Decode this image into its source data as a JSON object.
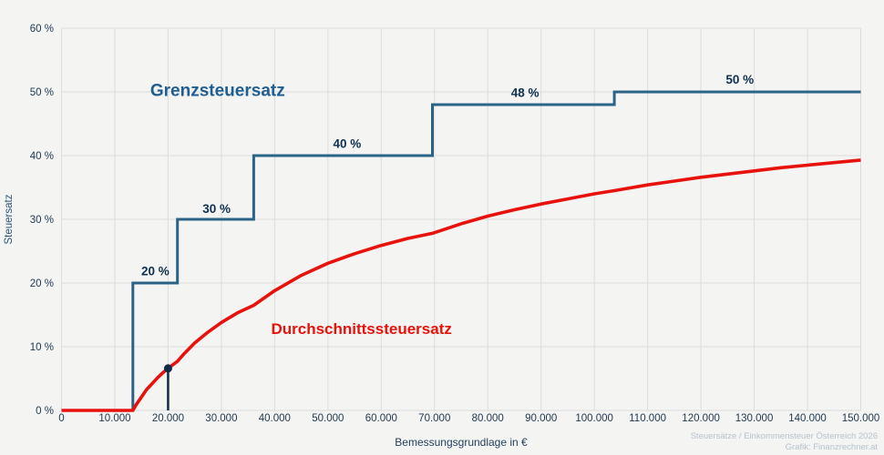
{
  "footer": {
    "credit_line1": "Steuersätze / Einkommensteuer Österreich 2026",
    "credit_line2": "Grafik: Finanzrechner.at"
  },
  "colors": {
    "background": "#f4f4f3",
    "grid": "#dcdcdc",
    "marginal_line": "#2b6386",
    "average_line": "#e8120c",
    "step_label": "#0d3150",
    "tick_text": "#1e3850",
    "marker": "#0d2c48",
    "credit_text": "#b5c2cc"
  },
  "chart_data": {
    "type": "line",
    "title": "",
    "xlabel": "Bemessungsgrundlage in €",
    "ylabel": "Steuersatz",
    "xlim": [
      0,
      150000
    ],
    "ylim": [
      0,
      60
    ],
    "grid": true,
    "legend_position": "inline-labels",
    "x_ticks": [
      0,
      10000,
      20000,
      30000,
      40000,
      50000,
      60000,
      70000,
      80000,
      90000,
      100000,
      110000,
      120000,
      130000,
      140000,
      150000
    ],
    "x_tick_labels": [
      "0",
      "10.000",
      "20.000",
      "30.000",
      "40.000",
      "50.000",
      "60.000",
      "70.000",
      "80.000",
      "90.000",
      "100.000",
      "110.000",
      "120.000",
      "130.000",
      "140.000",
      "150.000"
    ],
    "y_ticks": [
      0,
      10,
      20,
      30,
      40,
      50,
      60
    ],
    "y_tick_labels": [
      "0 %",
      "10 %",
      "20 %",
      "30 %",
      "40 %",
      "50 %",
      "60 %"
    ],
    "tax_brackets": [
      {
        "from": 0,
        "to": 13396,
        "rate": 0
      },
      {
        "from": 13396,
        "to": 21759,
        "rate": 20
      },
      {
        "from": 21759,
        "to": 36072,
        "rate": 30
      },
      {
        "from": 36072,
        "to": 69618,
        "rate": 40
      },
      {
        "from": 69618,
        "to": 103752,
        "rate": 48
      },
      {
        "from": 103752,
        "to": 150000,
        "rate": 50
      }
    ],
    "series": [
      {
        "name": "Grenzsteuersatz",
        "kind": "step",
        "color": "#2b6386",
        "width": 3,
        "points": [
          [
            0,
            0
          ],
          [
            13396,
            0
          ],
          [
            13396,
            20
          ],
          [
            21759,
            20
          ],
          [
            21759,
            30
          ],
          [
            36072,
            30
          ],
          [
            36072,
            40
          ],
          [
            69618,
            40
          ],
          [
            69618,
            48
          ],
          [
            103752,
            48
          ],
          [
            103752,
            50
          ],
          [
            150000,
            50
          ]
        ]
      },
      {
        "name": "Durchschnittssteuersatz",
        "kind": "line",
        "color": "#e8120c",
        "width": 3.6,
        "points": [
          [
            0,
            0
          ],
          [
            5000,
            0
          ],
          [
            10000,
            0
          ],
          [
            13396,
            0
          ],
          [
            14000,
            0.9
          ],
          [
            15000,
            2.1
          ],
          [
            16000,
            3.3
          ],
          [
            17000,
            4.2
          ],
          [
            18000,
            5.1
          ],
          [
            19000,
            5.9
          ],
          [
            20000,
            6.6
          ],
          [
            21759,
            7.7
          ],
          [
            23000,
            8.9
          ],
          [
            25000,
            10.6
          ],
          [
            27500,
            12.3
          ],
          [
            30000,
            13.8
          ],
          [
            33000,
            15.3
          ],
          [
            36072,
            16.5
          ],
          [
            40000,
            18.8
          ],
          [
            45000,
            21.2
          ],
          [
            50000,
            23.1
          ],
          [
            55000,
            24.6
          ],
          [
            60000,
            25.9
          ],
          [
            65000,
            27.0
          ],
          [
            69618,
            27.8
          ],
          [
            75000,
            29.3
          ],
          [
            80000,
            30.5
          ],
          [
            85000,
            31.5
          ],
          [
            90000,
            32.4
          ],
          [
            95000,
            33.2
          ],
          [
            100000,
            34.0
          ],
          [
            103752,
            34.5
          ],
          [
            110000,
            35.4
          ],
          [
            115000,
            36.0
          ],
          [
            120000,
            36.6
          ],
          [
            125000,
            37.1
          ],
          [
            130000,
            37.6
          ],
          [
            135000,
            38.1
          ],
          [
            140000,
            38.5
          ],
          [
            145000,
            38.9
          ],
          [
            150000,
            39.3
          ]
        ]
      }
    ],
    "step_labels": [
      {
        "text": "20 %",
        "x": 17600,
        "y": 21.9
      },
      {
        "text": "30 %",
        "x": 29100,
        "y": 31.7
      },
      {
        "text": "40 %",
        "x": 53600,
        "y": 41.9
      },
      {
        "text": "48 %",
        "x": 87000,
        "y": 49.9
      },
      {
        "text": "50 %",
        "x": 127300,
        "y": 52.0
      }
    ],
    "annotations": [
      {
        "text": "Grenzsteuersatz",
        "x": 29300,
        "y": 50.3,
        "color": "#1f5e92",
        "size": 19
      },
      {
        "text": "Durchschnittssteuersatz",
        "x": 56300,
        "y": 12.9,
        "color": "#e8120c",
        "size": 17
      }
    ],
    "marker": {
      "x": 20000,
      "y": 6.6,
      "dropline": true,
      "radius": 4.5
    }
  }
}
